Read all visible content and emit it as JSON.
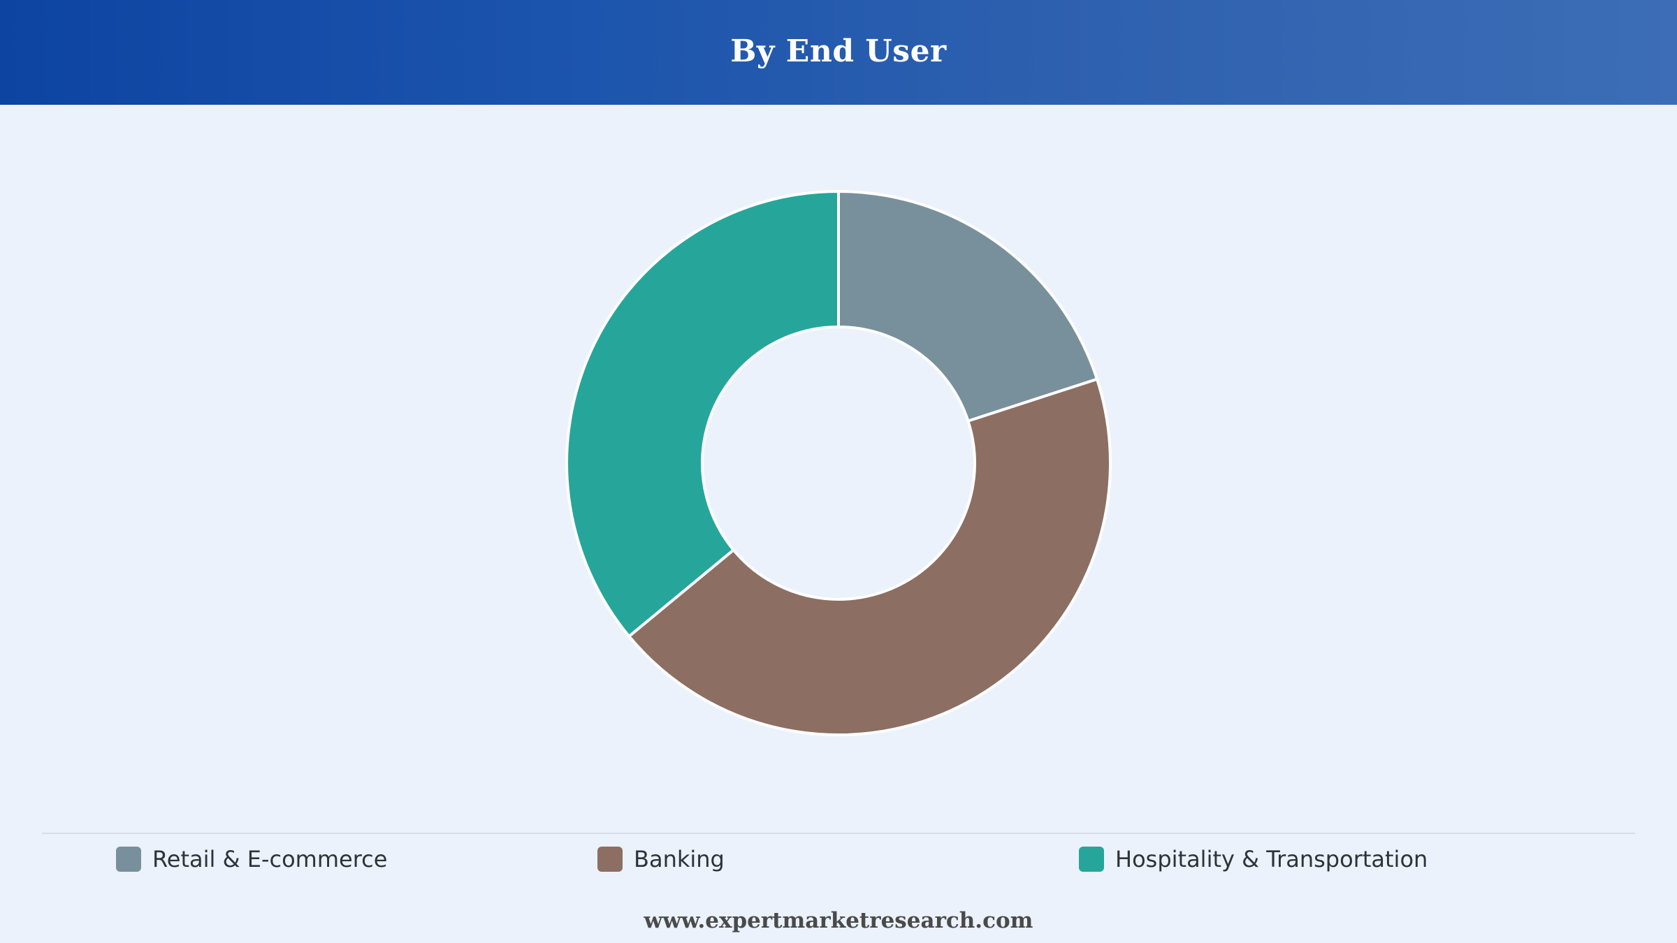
{
  "header": {
    "title": "By End User"
  },
  "chart_data": {
    "type": "pie",
    "donut": true,
    "title": "By End User",
    "categories": [
      "Retail & E-commerce",
      "Banking",
      "Hospitality & Transportation"
    ],
    "values": [
      20,
      44,
      36
    ],
    "colors": [
      "#78909c",
      "#8d6e63",
      "#26a69a"
    ],
    "start_angle_deg": 0,
    "direction": "clockwise",
    "legend_position": "bottom"
  },
  "legend": {
    "items": [
      {
        "label": "Retail & E-commerce",
        "color": "#78909c"
      },
      {
        "label": "Banking",
        "color": "#8d6e63"
      },
      {
        "label": "Hospitality & Transportation",
        "color": "#26a69a"
      }
    ]
  },
  "footer": {
    "text": "www.expertmarketresearch.com"
  }
}
